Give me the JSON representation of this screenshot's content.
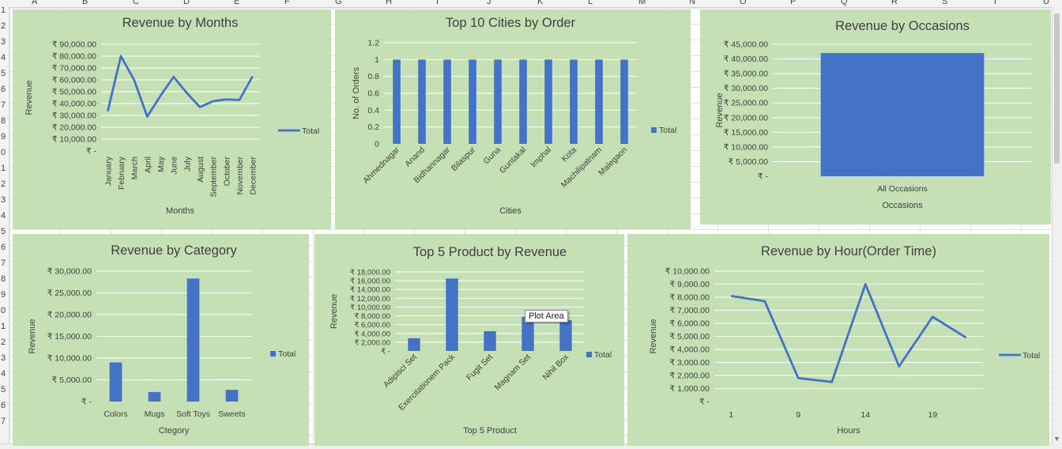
{
  "sheet": {
    "columns": [
      "A",
      "B",
      "C",
      "D",
      "E",
      "F",
      "G",
      "H",
      "I",
      "J",
      "K",
      "L",
      "M",
      "N",
      "O",
      "P",
      "Q",
      "R",
      "S",
      "T",
      "U"
    ],
    "rows": [
      "1",
      "2",
      "3",
      "4",
      "5",
      "6",
      "7",
      "8",
      "9",
      "0",
      "1",
      "2",
      "3",
      "4",
      "5",
      "6",
      "7",
      "8",
      "9",
      "0",
      "1",
      "2",
      "3",
      "4",
      "5",
      "6",
      "7"
    ]
  },
  "tooltip": "Plot Area",
  "colors": {
    "chart_bg": "#c5e0b4",
    "series": "#4472c4",
    "gridline": "#ffffff",
    "text": "#404040",
    "title": "#404040"
  },
  "chart_data": [
    {
      "type": "line",
      "title": "Revenue by Months",
      "xlabel": "Months",
      "ylabel": "Revenue",
      "legend": "right",
      "categories": [
        "January",
        "February",
        "March",
        "April",
        "May",
        "June",
        "July",
        "August",
        "September",
        "October",
        "November",
        "December"
      ],
      "series": [
        {
          "name": "Total",
          "values": [
            33500,
            80000,
            60000,
            29000,
            46500,
            62500,
            49000,
            37000,
            42000,
            43500,
            43000,
            63000
          ]
        }
      ],
      "yticks": [
        "₹ -",
        "₹ 10,000.00",
        "₹ 20,000.00",
        "₹ 30,000.00",
        "₹ 40,000.00",
        "₹ 50,000.00",
        "₹ 60,000.00",
        "₹ 70,000.00",
        "₹ 80,000.00",
        "₹ 90,000.00"
      ],
      "ylim": [
        0,
        90000
      ]
    },
    {
      "type": "bar",
      "title": "Top 10 Cities by Order",
      "xlabel": "Cities",
      "ylabel": "No. of Orders",
      "legend": "right",
      "categories": [
        "Ahmednagar",
        "Anand",
        "Bidhannagar",
        "Bilaspur",
        "Guna",
        "Guntakal",
        "Imphal",
        "Kota",
        "Machilipatnam",
        "Malegaon"
      ],
      "series": [
        {
          "name": "Total",
          "values": [
            1,
            1,
            1,
            1,
            1,
            1,
            1,
            1,
            1,
            1
          ]
        }
      ],
      "yticks": [
        "0",
        "0.2",
        "0.4",
        "0.6",
        "0.8",
        "1",
        "1.2"
      ],
      "ylim": [
        0,
        1.2
      ]
    },
    {
      "type": "bar",
      "title": "Revenue by Occasions",
      "xlabel": "Occasions",
      "ylabel": "Revenue",
      "legend": "none",
      "categories": [
        "All Occasions"
      ],
      "series": [
        {
          "name": "",
          "values": [
            42000
          ]
        }
      ],
      "yticks": [
        "₹ -",
        "₹ 5,000.00",
        "₹ 10,000.00",
        "₹ 15,000.00",
        "₹ 20,000.00",
        "₹ 25,000.00",
        "₹ 30,000.00",
        "₹ 35,000.00",
        "₹ 40,000.00",
        "₹ 45,000.00"
      ],
      "ylim": [
        0,
        45000
      ]
    },
    {
      "type": "bar",
      "title": "Revenue by Category",
      "xlabel": "Ctegory",
      "ylabel": "Revenue",
      "legend": "right",
      "categories": [
        "Colors",
        "Mugs",
        "Soft Toys",
        "Sweets"
      ],
      "series": [
        {
          "name": "Total",
          "values": [
            9000,
            2200,
            28300,
            2700
          ]
        }
      ],
      "yticks": [
        "₹ -",
        "₹ 5,000.00",
        "₹ 10,000.00",
        "₹ 15,000.00",
        "₹ 20,000.00",
        "₹ 25,000.00",
        "₹ 30,000.00"
      ],
      "ylim": [
        0,
        30000
      ]
    },
    {
      "type": "bar",
      "title": "Top 5 Product by Revenue",
      "xlabel": "Top 5 Product",
      "ylabel": "Revenue",
      "legend": "right",
      "categories": [
        "Adipisci Set",
        "Exercitationem Pack",
        "Fugit Set",
        "Magnam Set",
        "Nihil Box"
      ],
      "series": [
        {
          "name": "Total",
          "values": [
            2900,
            16500,
            4500,
            7800,
            7000
          ]
        }
      ],
      "yticks": [
        "₹ -",
        "₹ 2,000.00",
        "₹ 4,000.00",
        "₹ 6,000.00",
        "₹ 8,000.00",
        "₹ 10,000.00",
        "₹ 12,000.00",
        "₹ 14,000.00",
        "₹ 16,000.00",
        "₹ 18,000.00"
      ],
      "ylim": [
        0,
        18000
      ]
    },
    {
      "type": "line",
      "title": "Revenue by Hour(Order Time)",
      "xlabel": "Hours",
      "ylabel": "Revenue",
      "legend": "right",
      "categories": [
        "1",
        "",
        "9",
        "",
        "14",
        "",
        "19",
        ""
      ],
      "series": [
        {
          "name": "Total",
          "values": [
            8100,
            7700,
            1800,
            1500,
            9000,
            2700,
            6500,
            4900
          ]
        }
      ],
      "yticks": [
        "₹ -",
        "₹ 1,000.00",
        "₹ 2,000.00",
        "₹ 3,000.00",
        "₹ 4,000.00",
        "₹ 5,000.00",
        "₹ 6,000.00",
        "₹ 7,000.00",
        "₹ 8,000.00",
        "₹ 9,000.00",
        "₹ 10,000.00"
      ],
      "ylim": [
        0,
        10000
      ]
    }
  ]
}
